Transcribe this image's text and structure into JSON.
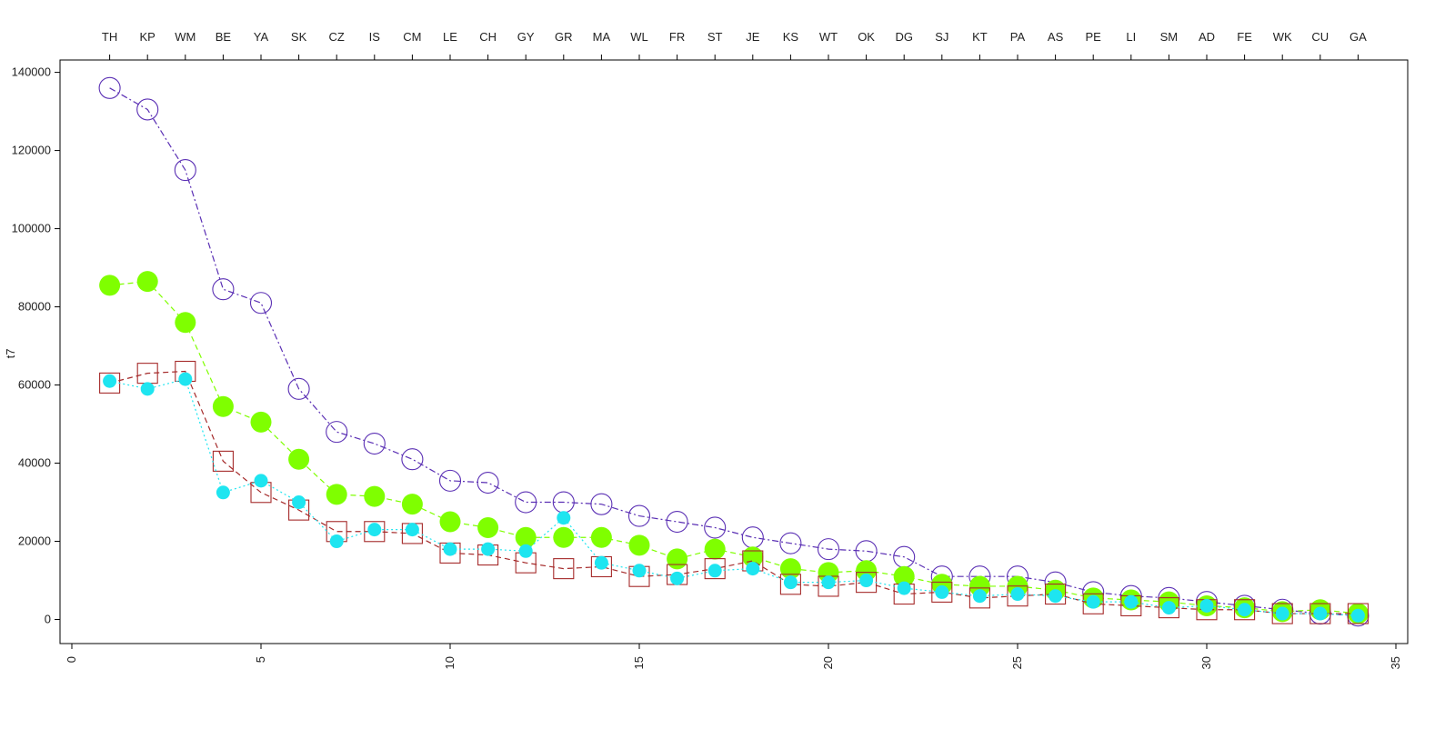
{
  "chart_data": {
    "type": "line",
    "title": "",
    "xlabel": "",
    "ylabel": "t7",
    "xlim": [
      0,
      35
    ],
    "ylim": [
      -5000,
      142000
    ],
    "x_ticks": [
      0,
      5,
      10,
      15,
      20,
      25,
      30,
      35
    ],
    "y_ticks": [
      0,
      20000,
      40000,
      60000,
      80000,
      100000,
      120000,
      140000
    ],
    "grid": false,
    "legend": "none",
    "x": [
      1,
      2,
      3,
      4,
      5,
      6,
      7,
      8,
      9,
      10,
      11,
      12,
      13,
      14,
      15,
      16,
      17,
      18,
      19,
      20,
      21,
      22,
      23,
      24,
      25,
      26,
      27,
      28,
      29,
      30,
      31,
      32,
      33,
      34
    ],
    "top_labels": [
      "TH",
      "KP",
      "WM",
      "BE",
      "YA",
      "SK",
      "CZ",
      "IS",
      "CM",
      "LE",
      "CH",
      "GY",
      "GR",
      "MA",
      "WL",
      "FR",
      "ST",
      "JE",
      "KS",
      "WT",
      "OK",
      "DG",
      "SJ",
      "KT",
      "PA",
      "AS",
      "PE",
      "LI",
      "SM",
      "AD",
      "FE",
      "WK",
      "CU",
      "GA"
    ],
    "series": [
      {
        "marker": "circle-open",
        "line": "dashdot",
        "color": "#5a2fb4",
        "values": [
          136000,
          130500,
          115000,
          84500,
          81000,
          59000,
          48000,
          45000,
          41000,
          35500,
          35000,
          30000,
          30000,
          29500,
          26500,
          25000,
          23500,
          21000,
          19500,
          18000,
          17500,
          16000,
          11000,
          11000,
          11000,
          9500,
          7000,
          6000,
          5500,
          4500,
          3500,
          2500,
          1500,
          1000
        ]
      },
      {
        "marker": "circle-filled-large",
        "line": "dashed",
        "color": "#7fff00",
        "values": [
          85500,
          86500,
          76000,
          54500,
          50500,
          41000,
          32000,
          31500,
          29500,
          25000,
          23500,
          21000,
          21000,
          21000,
          19000,
          15500,
          18000,
          16000,
          13000,
          12000,
          12500,
          11000,
          9000,
          8500,
          8500,
          7500,
          5500,
          5000,
          4500,
          3500,
          3000,
          2000,
          2500,
          1500
        ]
      },
      {
        "marker": "square-open",
        "line": "dashed",
        "color": "#a52a2a",
        "values": [
          60500,
          63000,
          63500,
          40500,
          32500,
          28000,
          22500,
          22500,
          22000,
          17000,
          16500,
          14500,
          13000,
          13500,
          11000,
          11500,
          13000,
          15000,
          9000,
          8500,
          9500,
          6500,
          7000,
          5500,
          6000,
          6500,
          4000,
          3500,
          3000,
          2500,
          2500,
          1500,
          1500,
          1500
        ]
      },
      {
        "marker": "circle-filled-small",
        "line": "dotted",
        "color": "#1ee5f0",
        "values": [
          61000,
          59000,
          61500,
          32500,
          35500,
          30000,
          20000,
          23000,
          23000,
          18000,
          18000,
          17500,
          26000,
          14500,
          12500,
          10500,
          12500,
          13000,
          9500,
          9500,
          10000,
          8000,
          7000,
          6000,
          6500,
          6000,
          4500,
          4500,
          3000,
          3500,
          2500,
          1500,
          1500,
          1000
        ]
      }
    ]
  }
}
